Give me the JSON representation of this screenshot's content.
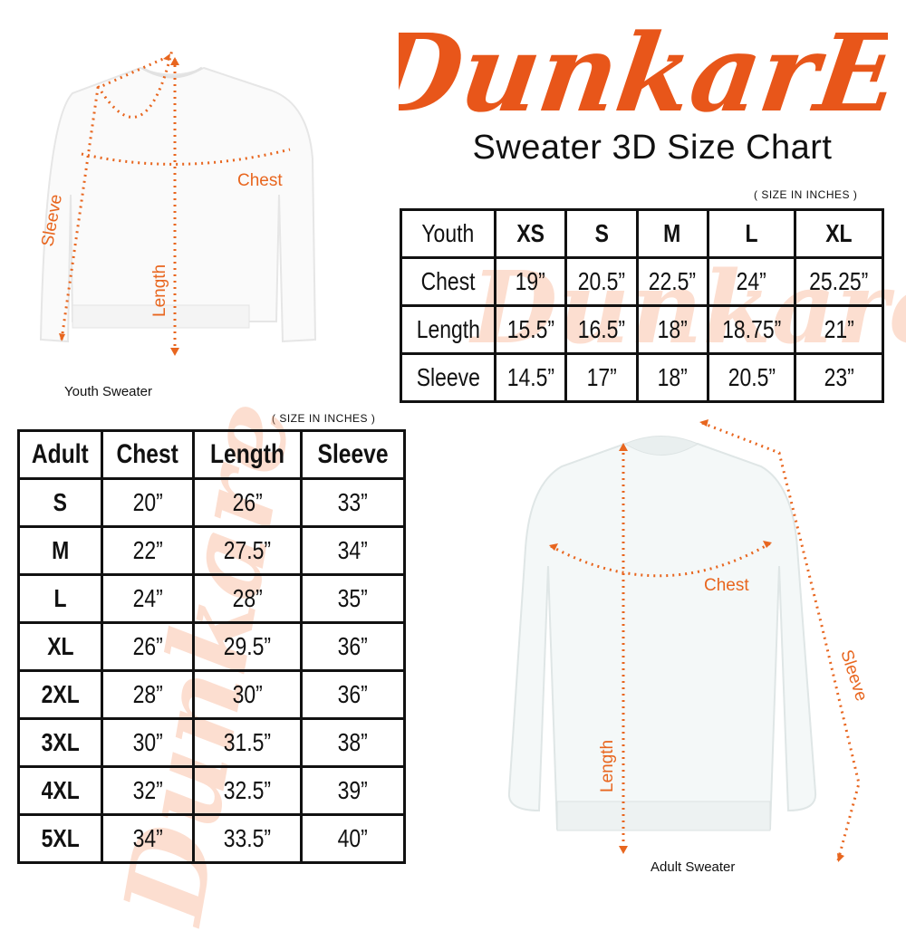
{
  "brand": {
    "logo_text": "DunkarE",
    "color": "#e8561a"
  },
  "title": "Sweater 3D Size Chart",
  "youth": {
    "units_note": "( SIZE IN INCHES )",
    "caption": "Youth Sweater",
    "labels": {
      "chest": "Chest",
      "length": "Length",
      "sleeve": "Sleeve"
    },
    "table": {
      "headers": [
        "Youth",
        "XS",
        "S",
        "M",
        "L",
        "XL"
      ],
      "rows": [
        [
          "Chest",
          "19”",
          "20.5”",
          "22.5”",
          "24”",
          "25.25”"
        ],
        [
          "Length",
          "15.5”",
          "16.5”",
          "18”",
          "18.75”",
          "21”"
        ],
        [
          "Sleeve",
          "14.5”",
          "17”",
          "18”",
          "20.5”",
          "23”"
        ]
      ]
    }
  },
  "adult": {
    "units_note": "( SIZE IN INCHES )",
    "caption": "Adult Sweater",
    "labels": {
      "chest": "Chest",
      "length": "Length",
      "sleeve": "Sleeve"
    },
    "table": {
      "headers": [
        "Adult",
        "Chest",
        "Length",
        "Sleeve"
      ],
      "rows": [
        [
          "S",
          "20”",
          "26”",
          "33”"
        ],
        [
          "M",
          "22”",
          "27.5”",
          "34”"
        ],
        [
          "L",
          "24”",
          "28”",
          "35”"
        ],
        [
          "XL",
          "26”",
          "29.5”",
          "36”"
        ],
        [
          "2XL",
          "28”",
          "30”",
          "36”"
        ],
        [
          "3XL",
          "30”",
          "31.5”",
          "38”"
        ],
        [
          "4XL",
          "32”",
          "32.5”",
          "39”"
        ],
        [
          "5XL",
          "34”",
          "33.5”",
          "40”"
        ]
      ]
    }
  }
}
